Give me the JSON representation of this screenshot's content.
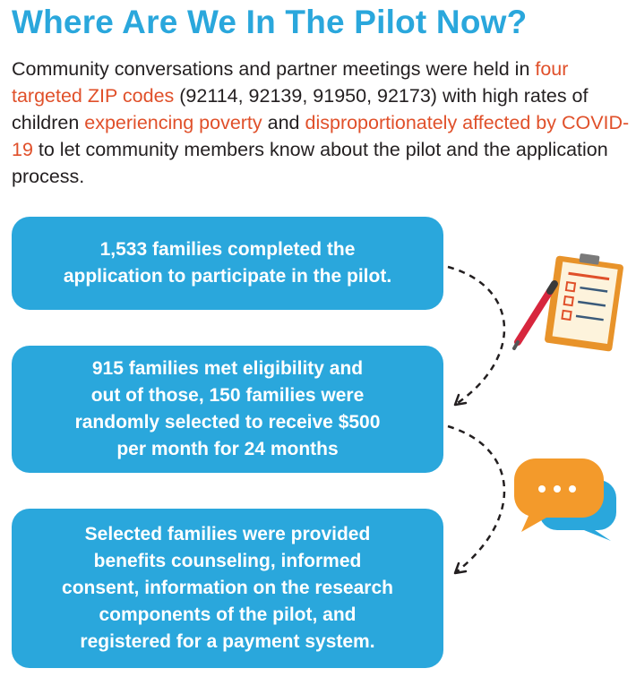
{
  "title": "Where Are We In The Pilot Now?",
  "intro": {
    "p1": "Community conversations and partner meetings were held in ",
    "h1": "four targeted ZIP codes",
    "p2": " (92114, 92139, 91950, 92173) with high rates of children ",
    "h2": "experiencing poverty",
    "p3": " and ",
    "h3": "disproportionately affected by COVID-19",
    "p4": " to let community members know about the pilot and the application process."
  },
  "steps": [
    {
      "line1": "1,533 families completed the",
      "line2": "application to participate in the pilot."
    },
    {
      "line1": "915 families met eligibility and",
      "line2": "out of those, 150 families were",
      "line3": "randomly selected to receive $500",
      "line4": "per month for 24 months"
    },
    {
      "line1": "Selected families were provided",
      "line2": "benefits counseling, informed",
      "line3": "consent, information on the research",
      "line4": "components of the pilot, and",
      "line5": "registered for a payment system."
    }
  ],
  "colors": {
    "accent_blue": "#2aa7dc",
    "highlight_orange": "#e0502a",
    "text_dark": "#231f20"
  },
  "icons": [
    "clipboard-checklist-icon",
    "pencil-icon",
    "chat-bubbles-icon",
    "dashed-arrow-icon"
  ]
}
